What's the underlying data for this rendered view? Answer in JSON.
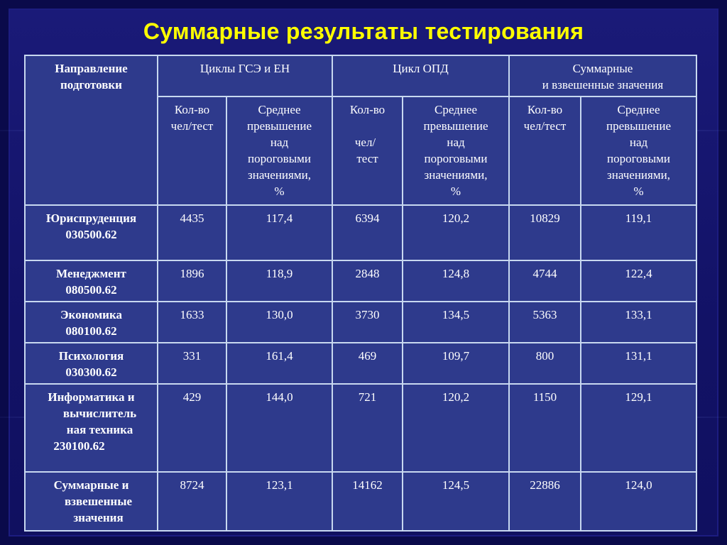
{
  "title": "Суммарные результаты тестирования",
  "table": {
    "header": {
      "direction": [
        "Направление",
        "подготовки"
      ],
      "groups": {
        "gse": "Циклы ГСЭ и ЕН",
        "opd": "Цикл ОПД",
        "total": [
          "Суммарные",
          "и взвешенные значения"
        ]
      },
      "count_label": [
        "Кол-во",
        "чел/тест"
      ],
      "count_label_opd": [
        "Кол-во",
        "чел/",
        "тест"
      ],
      "avg_label": [
        "Среднее",
        "превышение",
        "над",
        "пороговыми",
        "значениями,",
        "%"
      ]
    },
    "rows": [
      {
        "direction": [
          "Юриспруденция",
          "030500.62"
        ],
        "gse_count": "4435",
        "gse_avg": "117,4",
        "opd_count": "6394",
        "opd_avg": "120,2",
        "total_count": "10829",
        "total_avg": "119,1"
      },
      {
        "direction": [
          "Менеджмент",
          "080500.62"
        ],
        "gse_count": "1896",
        "gse_avg": "118,9",
        "opd_count": "2848",
        "opd_avg": "124,8",
        "total_count": "4744",
        "total_avg": "122,4"
      },
      {
        "direction": [
          "Экономика",
          "080100.62"
        ],
        "gse_count": "1633",
        "gse_avg": "130,0",
        "opd_count": "3730",
        "opd_avg": "134,5",
        "total_count": "5363",
        "total_avg": "133,1"
      },
      {
        "direction": [
          "Психология",
          "030300.62"
        ],
        "gse_count": "331",
        "gse_avg": "161,4",
        "opd_count": "469",
        "opd_avg": "109,7",
        "total_count": "800",
        "total_avg": "131,1"
      },
      {
        "direction": [
          "Информатика и",
          "вычислитель",
          "ная техника",
          "230100.62"
        ],
        "gse_count": "429",
        "gse_avg": "144,0",
        "opd_count": "721",
        "opd_avg": "120,2",
        "total_count": "1150",
        "total_avg": "129,1"
      },
      {
        "direction": [
          "Суммарные и",
          "взвешенные",
          "значения"
        ],
        "gse_count": "8724",
        "gse_avg": "123,1",
        "opd_count": "14162",
        "opd_avg": "124,5",
        "total_count": "22886",
        "total_avg": "124,0"
      }
    ]
  }
}
